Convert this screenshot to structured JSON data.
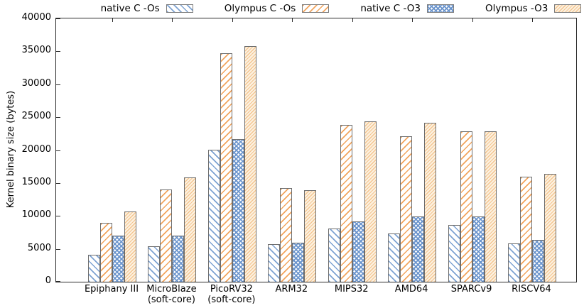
{
  "chart_data": {
    "type": "bar",
    "title": "",
    "ylabel": "Kernel binary size (bytes)",
    "xlabel": "",
    "ylim": [
      0,
      40000
    ],
    "ytick_step": 5000,
    "ytick_labels": [
      "0",
      "5000",
      "10000",
      "15000",
      "20000",
      "25000",
      "30000",
      "35000",
      "40000"
    ],
    "grid": false,
    "legend_position": "top",
    "background": "#ffffff",
    "bar_border_color": "#6e6e6e",
    "categories": [
      {
        "label": "Epiphany III",
        "sublabel": ""
      },
      {
        "label": "MicroBlaze",
        "sublabel": "(soft-core)"
      },
      {
        "label": "PicoRV32",
        "sublabel": "(soft-core)"
      },
      {
        "label": "ARM32",
        "sublabel": ""
      },
      {
        "label": "MIPS32",
        "sublabel": ""
      },
      {
        "label": "AMD64",
        "sublabel": ""
      },
      {
        "label": "SPARCv9",
        "sublabel": ""
      },
      {
        "label": "RISCV64",
        "sublabel": ""
      }
    ],
    "series": [
      {
        "name": "native C -Os",
        "pattern": "blue-backslash-hatch",
        "color": "#7da2d2",
        "values": [
          4100,
          5400,
          20100,
          5700,
          8100,
          7300,
          8600,
          5800
        ]
      },
      {
        "name": "Olympus C -Os",
        "pattern": "orange-slash-hatch",
        "color": "#f2a45c",
        "values": [
          8900,
          14000,
          34700,
          14200,
          23800,
          22100,
          22900,
          16000
        ]
      },
      {
        "name": "native C -O3",
        "pattern": "blue-crosshatch",
        "color": "#6892cb",
        "values": [
          7000,
          7000,
          21700,
          5900,
          9200,
          9900,
          9900,
          6400
        ]
      },
      {
        "name": "Olympus -O3",
        "pattern": "tan-fine-dot-hatch",
        "color": "#fcf1e0",
        "values": [
          10700,
          15800,
          35800,
          13900,
          24400,
          24200,
          22900,
          16400
        ]
      }
    ]
  }
}
